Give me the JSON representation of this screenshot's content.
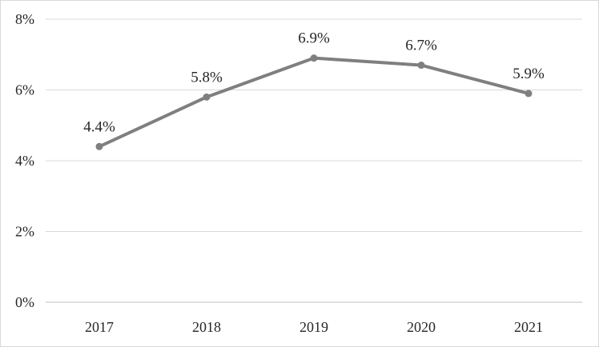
{
  "chart_data": {
    "type": "line",
    "title": "",
    "xlabel": "",
    "ylabel": "",
    "categories": [
      "2017",
      "2018",
      "2019",
      "2020",
      "2021"
    ],
    "series": [
      {
        "values": [
          4.4,
          5.8,
          6.9,
          6.7,
          5.9
        ],
        "data_labels": [
          "4.4%",
          "5.8%",
          "6.9%",
          "6.7%",
          "5.9%"
        ],
        "color": "#7f7f7f",
        "marker": "circle"
      }
    ],
    "y_ticks": [
      0,
      2,
      4,
      6,
      8
    ],
    "y_tick_labels": [
      "0%",
      "2%",
      "4%",
      "6%",
      "8%"
    ],
    "ylim": [
      0,
      8
    ],
    "grid": "horizontal",
    "legend": "none",
    "gridline_color": "#d9d9d9",
    "text_color": "#262626"
  }
}
